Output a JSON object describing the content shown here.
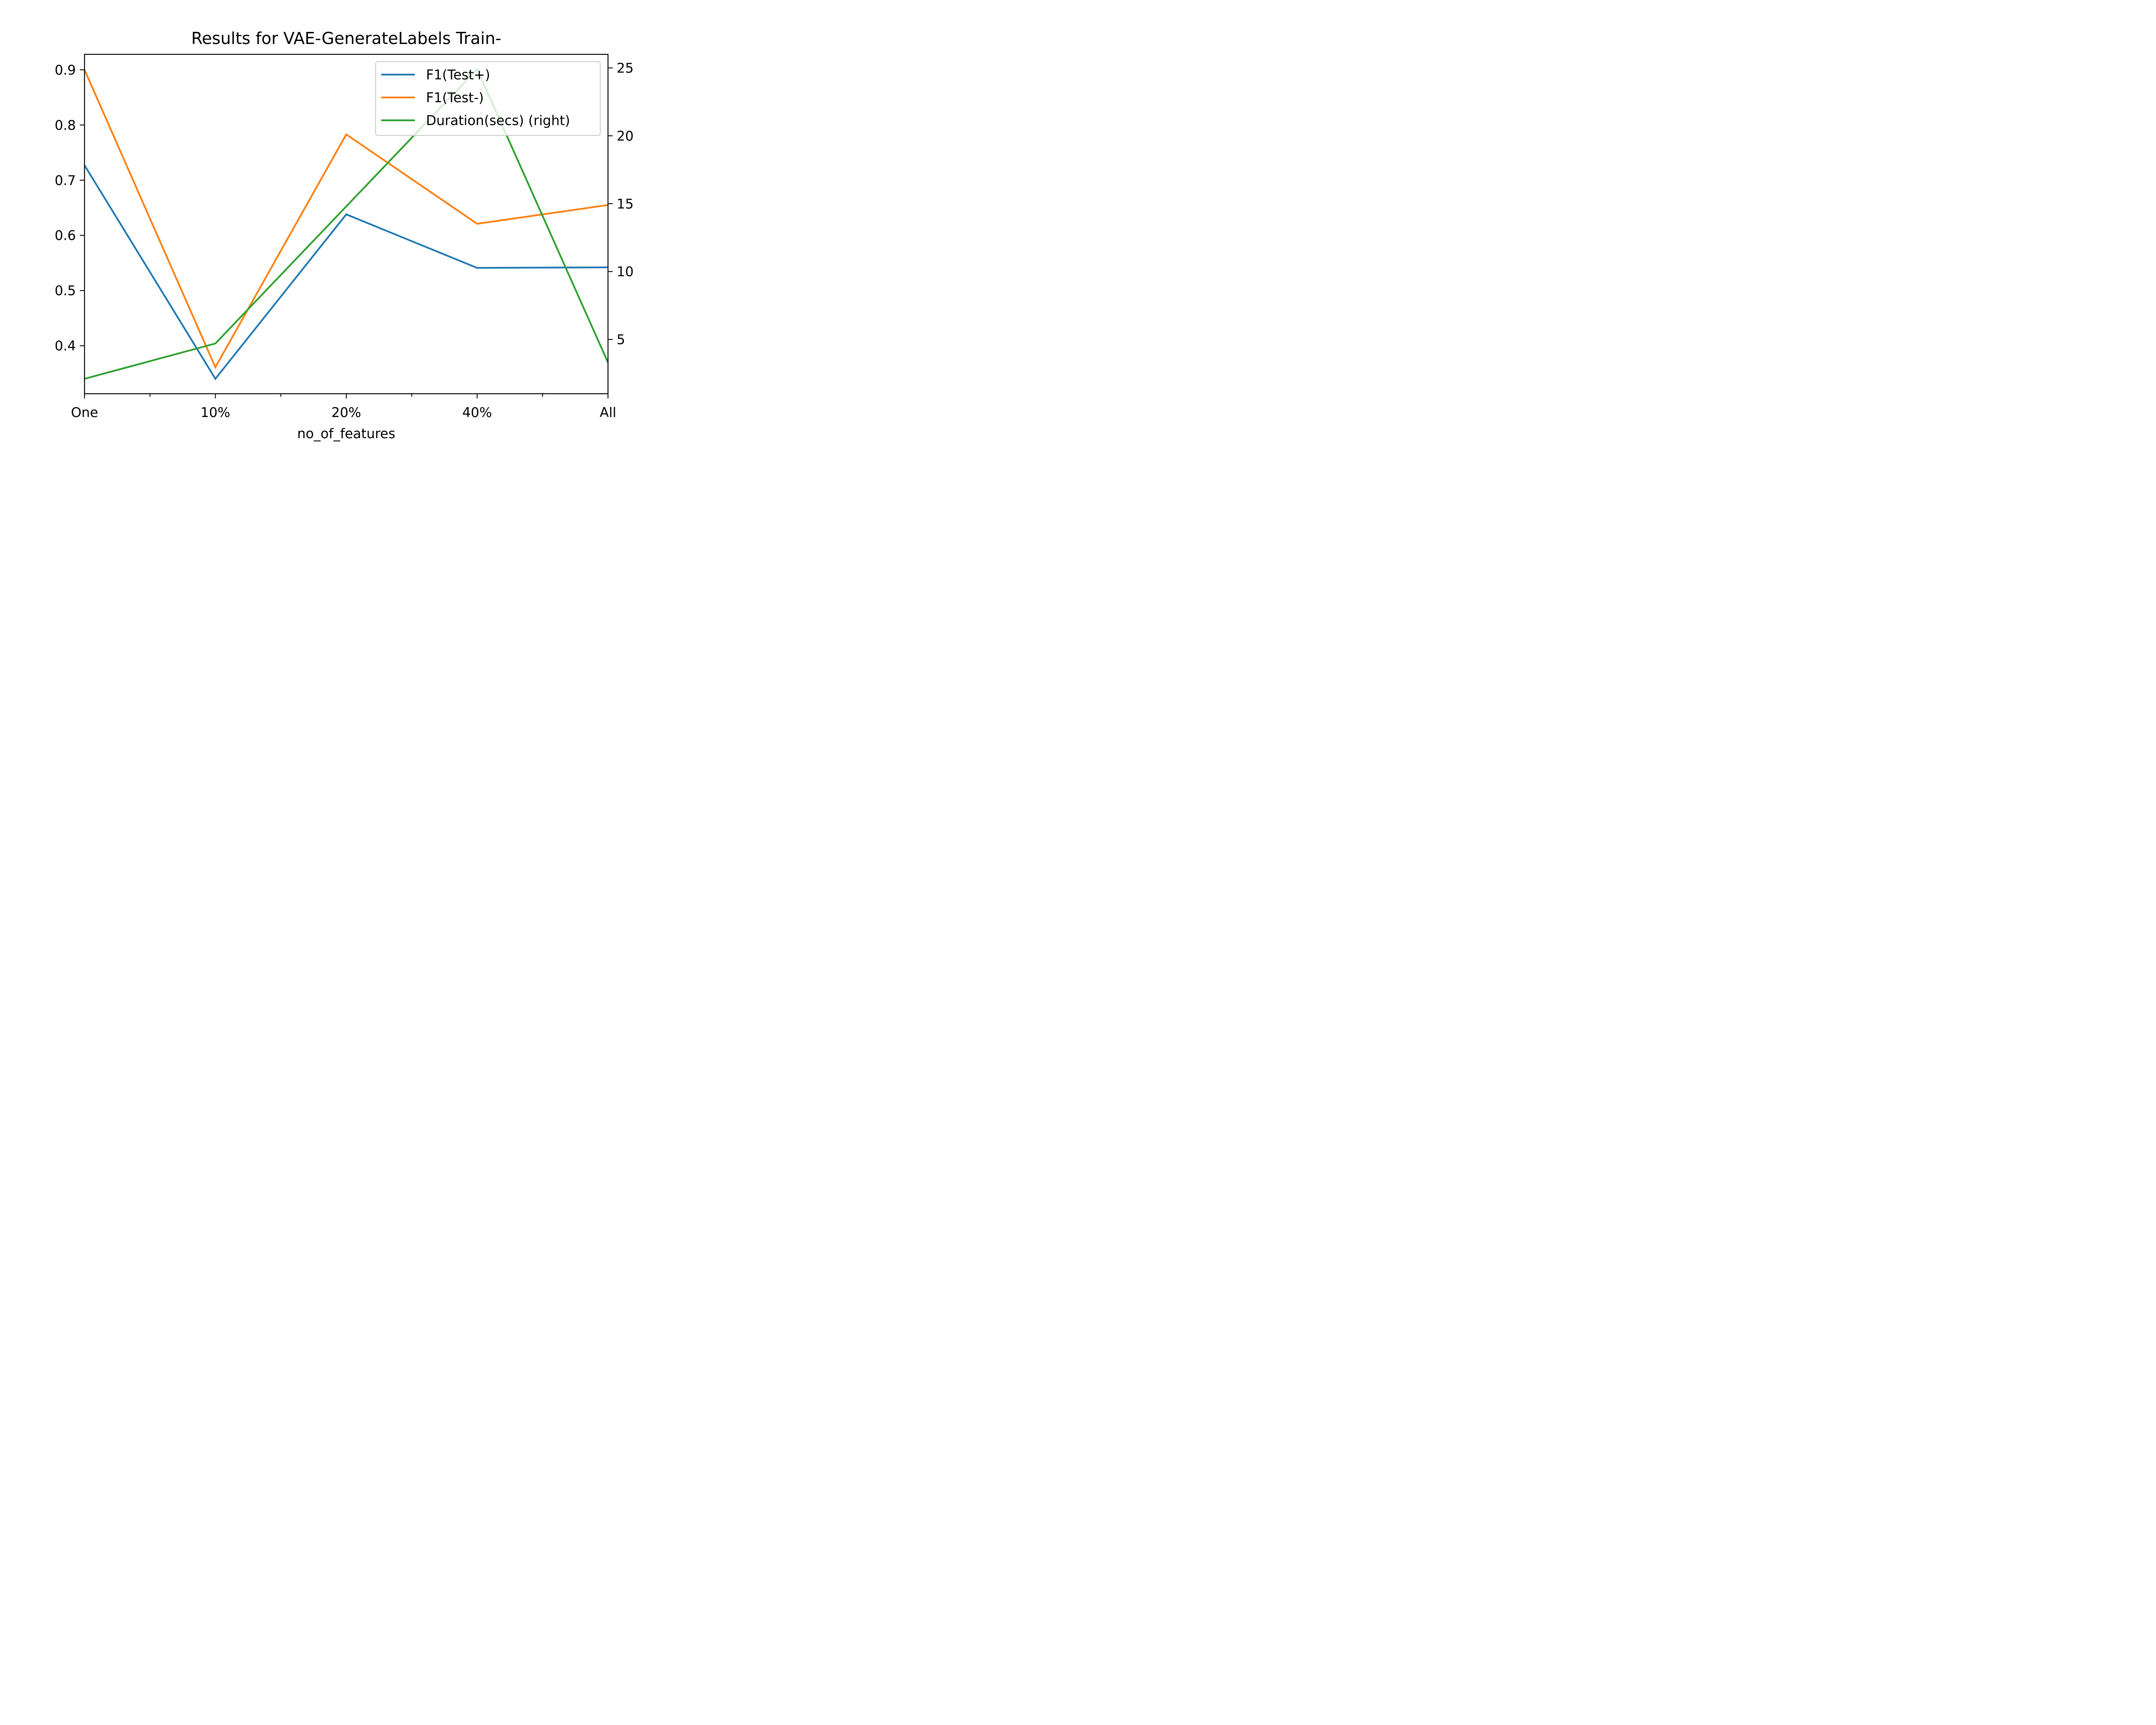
{
  "chart_data": {
    "type": "line",
    "title": "Results for VAE-GenerateLabels Train-",
    "xlabel": "no_of_features",
    "ylabel": "",
    "y2label": "",
    "categories": [
      "One",
      "10%",
      "20%",
      "40%",
      "All"
    ],
    "ylim": [
      0.313,
      0.928
    ],
    "y2lim": [
      1.0,
      26.0
    ],
    "yticks": [
      0.4,
      0.5,
      0.6,
      0.7,
      0.8,
      0.9
    ],
    "y2ticks": [
      5,
      10,
      15,
      20,
      25
    ],
    "legend_position": "top-right",
    "grid": false,
    "series": [
      {
        "name": "F1(Test+)",
        "axis": "left",
        "color": "#1f77b4",
        "values": [
          0.727,
          0.34,
          0.638,
          0.541,
          0.542
        ]
      },
      {
        "name": "F1(Test-)",
        "axis": "left",
        "color": "#ff7f0e",
        "values": [
          0.9,
          0.361,
          0.783,
          0.621,
          0.655
        ]
      },
      {
        "name": "Duration(secs) (right)",
        "axis": "right",
        "color": "#2ca02c",
        "values": [
          2.1,
          4.7,
          14.8,
          24.9,
          3.3
        ]
      }
    ]
  }
}
